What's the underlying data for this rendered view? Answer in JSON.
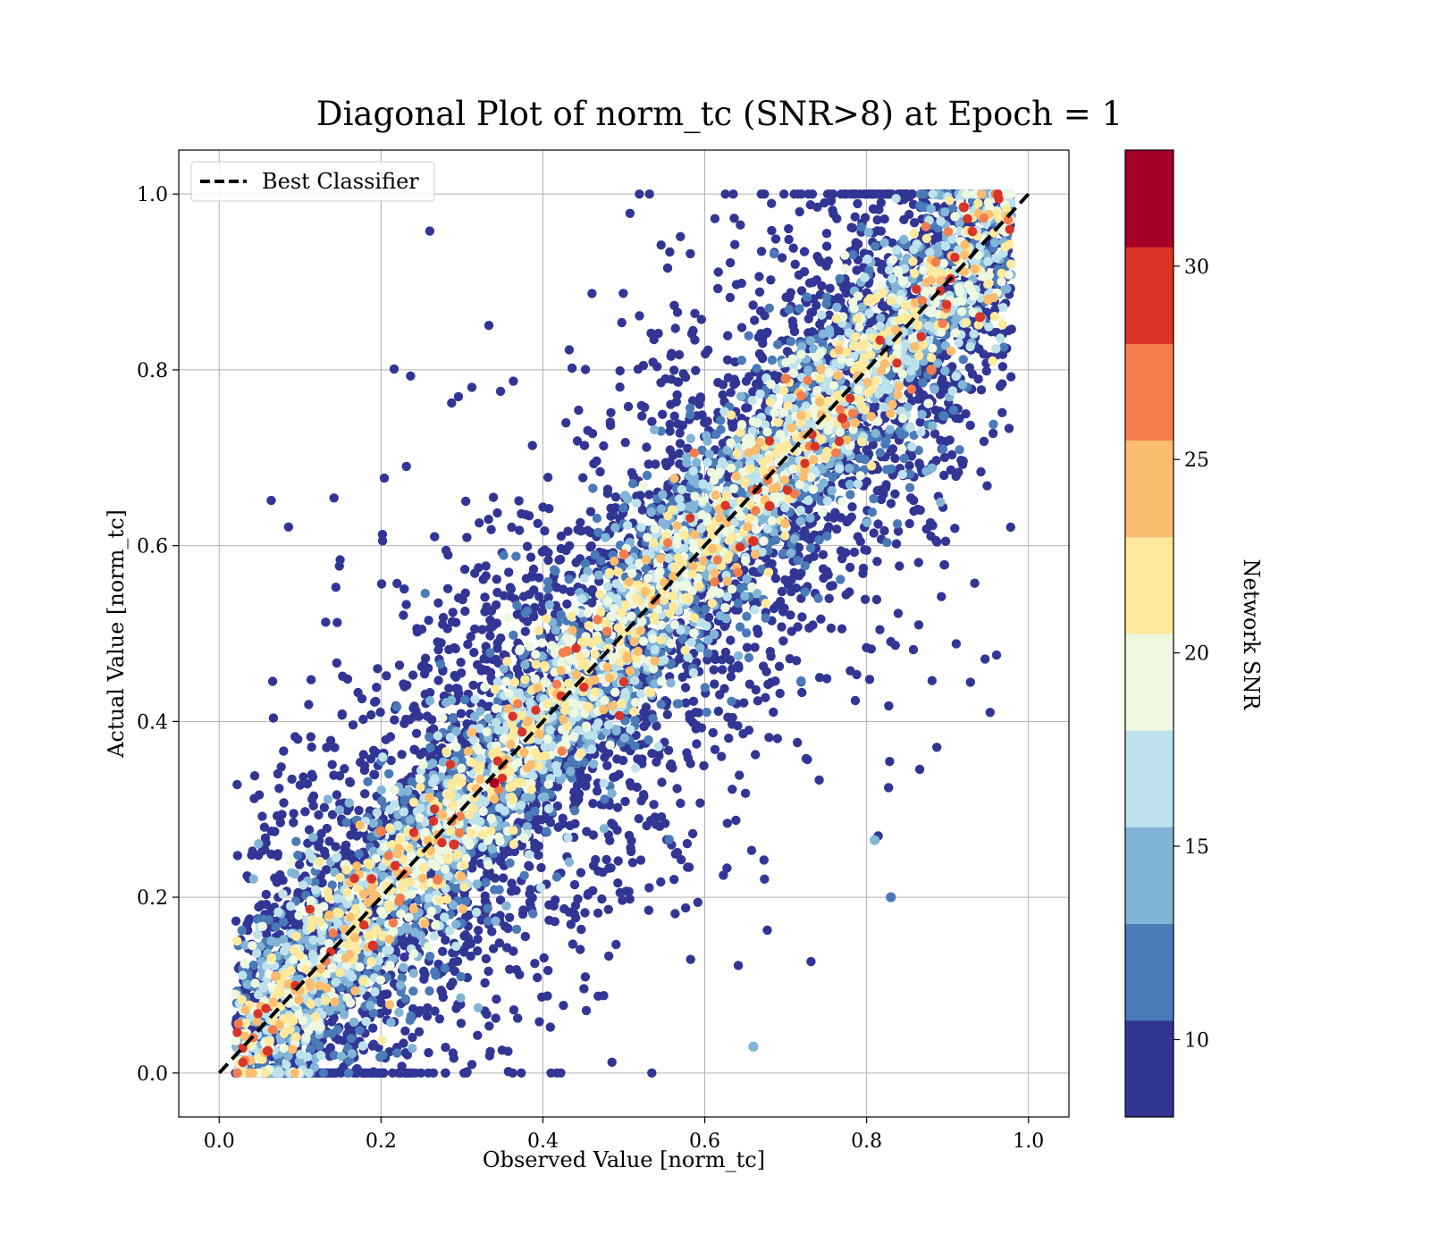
{
  "chart_data": {
    "type": "scatter",
    "title": "Diagonal Plot of norm_tc (SNR>8) at Epoch = 1",
    "xlabel": "Observed Value [norm_tc]",
    "ylabel": "Actual Value [norm_tc]",
    "xlim": [
      -0.05,
      1.05
    ],
    "ylim": [
      -0.05,
      1.05
    ],
    "xticks": [
      "0.0",
      "0.2",
      "0.4",
      "0.6",
      "0.8",
      "1.0"
    ],
    "yticks": [
      "0.0",
      "0.2",
      "0.4",
      "0.6",
      "0.8",
      "1.0"
    ],
    "grid": true,
    "legend": {
      "label": "Best Classifier",
      "placement": "top-left"
    },
    "reference_line": {
      "name": "Best Classifier",
      "x": [
        0.0,
        1.0
      ],
      "y": [
        0.0,
        1.0
      ],
      "style": "dashed",
      "color": "#000000"
    },
    "colorbar": {
      "label": "Network SNR",
      "range": [
        8,
        33
      ],
      "ticks": [
        "10",
        "15",
        "20",
        "25",
        "30"
      ],
      "bins": [
        {
          "from": 8.0,
          "to": 10.5,
          "color": "#313695"
        },
        {
          "from": 10.5,
          "to": 13.0,
          "color": "#4a7ab7"
        },
        {
          "from": 13.0,
          "to": 15.5,
          "color": "#81b4d6"
        },
        {
          "from": 15.5,
          "to": 18.0,
          "color": "#bde2ee"
        },
        {
          "from": 18.0,
          "to": 20.5,
          "color": "#eef8e1"
        },
        {
          "from": 20.5,
          "to": 23.0,
          "color": "#fee99d"
        },
        {
          "from": 23.0,
          "to": 25.5,
          "color": "#fdbd6f"
        },
        {
          "from": 25.5,
          "to": 28.0,
          "color": "#f47d4d"
        },
        {
          "from": 28.0,
          "to": 30.5,
          "color": "#d93429"
        },
        {
          "from": 30.5,
          "to": 33.0,
          "color": "#a50026"
        }
      ]
    },
    "highlight_points": [
      {
        "x": 0.34,
        "y": 0.33,
        "snr": 32
      },
      {
        "x": 0.92,
        "y": 0.985,
        "snr": 29
      },
      {
        "x": 0.94,
        "y": 0.86,
        "snr": 29
      },
      {
        "x": 0.77,
        "y": 0.745,
        "snr": 29
      },
      {
        "x": 0.68,
        "y": 0.645,
        "snr": 29
      },
      {
        "x": 0.29,
        "y": 0.26,
        "snr": 29
      },
      {
        "x": 0.19,
        "y": 0.145,
        "snr": 29
      },
      {
        "x": 0.06,
        "y": 0.025,
        "snr": 29
      },
      {
        "x": 0.66,
        "y": 0.605,
        "snr": 28
      },
      {
        "x": 0.5,
        "y": 0.59,
        "snr": 27
      },
      {
        "x": 0.7,
        "y": 0.79,
        "snr": 27
      },
      {
        "x": 0.88,
        "y": 0.8,
        "snr": 27
      },
      {
        "x": 0.2,
        "y": 0.275,
        "snr": 26
      },
      {
        "x": 0.43,
        "y": 0.48,
        "snr": 26
      },
      {
        "x": 0.27,
        "y": 0.22,
        "snr": 26
      },
      {
        "x": 0.81,
        "y": 0.265,
        "snr": 15
      },
      {
        "x": 0.83,
        "y": 0.2,
        "snr": 12
      },
      {
        "x": 0.66,
        "y": 0.03,
        "snr": 15
      },
      {
        "x": 0.07,
        "y": 0.11,
        "snr": 24
      },
      {
        "x": 0.95,
        "y": 0.88,
        "snr": 25
      }
    ],
    "note_points": "Thousands of points concentrated along y = x; high SNR points lie tight to the diagonal, low SNR points scatter widely"
  }
}
